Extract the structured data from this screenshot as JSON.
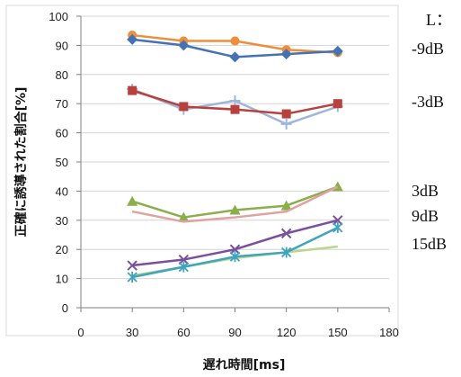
{
  "chart_data": {
    "type": "line",
    "xlabel": "遅れ時間[ms]",
    "ylabel": "正確に誘導された割合[%]",
    "xlim": [
      0,
      180
    ],
    "ylim": [
      0,
      100
    ],
    "x_ticks": [
      "0",
      "30",
      "60",
      "90",
      "120",
      "150",
      "180"
    ],
    "y_ticks": [
      "0",
      "10",
      "20",
      "30",
      "40",
      "50",
      "60",
      "70",
      "80",
      "90",
      "100"
    ],
    "grid": "horizontal",
    "legend_title": "L：",
    "legend_labels": [
      "-9dB",
      "-3dB",
      "3dB",
      "9dB",
      "15dB"
    ],
    "x": [
      30,
      60,
      90,
      120,
      150
    ],
    "series": [
      {
        "color": "#ED8E3A",
        "marker": "circle",
        "values": [
          93.5,
          91.5,
          91.5,
          88.5,
          87.5
        ]
      },
      {
        "color": "#4572B5",
        "marker": "diamond",
        "values": [
          92,
          90,
          86,
          87,
          88
        ]
      },
      {
        "color": "#9EB6DC",
        "marker": "plus",
        "values": [
          75,
          68,
          71,
          63,
          69
        ]
      },
      {
        "color": "#B8413E",
        "marker": "square",
        "values": [
          74.5,
          69,
          68,
          66.5,
          70
        ]
      },
      {
        "color": "#8AAE4A",
        "marker": "triangle",
        "values": [
          36.5,
          31,
          33.5,
          35,
          41.5
        ]
      },
      {
        "color": "#E0A1A1",
        "marker": "none",
        "values": [
          33,
          29.5,
          31,
          33,
          41.5
        ]
      },
      {
        "color": "#7A4F9C",
        "marker": "x",
        "values": [
          14.5,
          16.5,
          20,
          25.5,
          30
        ]
      },
      {
        "color": "#B9D68C",
        "marker": "none",
        "values": [
          11,
          14,
          17,
          19,
          21
        ]
      },
      {
        "color": "#3FA4BC",
        "marker": "star",
        "values": [
          10.5,
          14,
          17.5,
          19,
          27.5
        ]
      }
    ]
  }
}
